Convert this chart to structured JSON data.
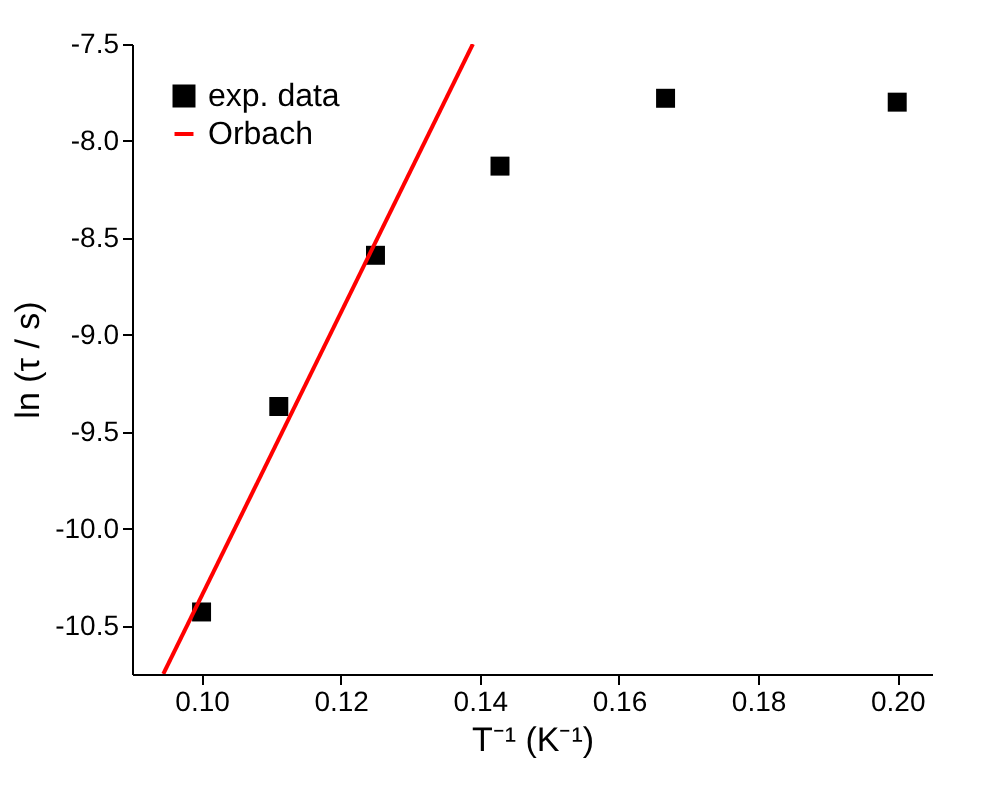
{
  "chart_data": {
    "type": "scatter",
    "xlabel": "T⁻¹ (K⁻¹)",
    "ylabel": "ln (τ / s)",
    "xlim": [
      0.09,
      0.205
    ],
    "xticks": [
      {
        "value": 0.1,
        "label": "0.10"
      },
      0.12,
      0.14,
      0.16,
      0.18,
      {
        "value": 0.2,
        "label": "0.20"
      }
    ],
    "ylim": [
      -10.75,
      -7.5
    ],
    "yticks": [
      -10.5,
      {
        "value": -10.0,
        "label": "-10.0"
      },
      -9.5,
      {
        "value": -9.0,
        "label": "-9.0"
      },
      -8.5,
      {
        "value": -8.0,
        "label": "-8.0"
      },
      -7.5
    ],
    "grid": false,
    "legend": "top left",
    "line_style": "solid",
    "series": [
      {
        "name": "exp. data",
        "marker": "square",
        "color": "#000000",
        "x": [
          0.1,
          0.1111,
          0.125,
          0.1429,
          0.1667,
          0.2
        ],
        "values": [
          -10.43,
          -9.37,
          -8.59,
          -8.13,
          -7.78,
          -7.8
        ]
      },
      {
        "name": "Orbach",
        "type": "line",
        "marker": "none",
        "color": "#ff0000",
        "x": [
          0.0945,
          0.139
        ],
        "values": [
          -10.75,
          -7.5
        ]
      }
    ]
  }
}
